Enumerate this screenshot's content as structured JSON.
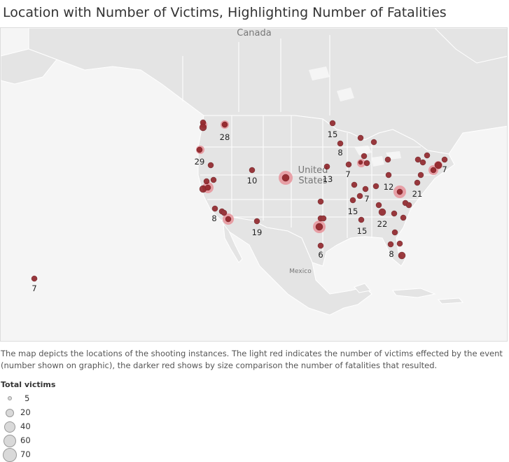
{
  "title": "Location with Number of Victims, Highlighting Number of Fatalities",
  "map": {
    "country_labels": {
      "canada": "Canada",
      "united": "United",
      "states": "States",
      "mexico": "Mexico"
    },
    "colors": {
      "victims_light": "#e8939b",
      "fatalities_dark": "#8b1a1f",
      "land": "#e4e4e4",
      "water": "#f5f5f5",
      "borders": "#ffffff"
    },
    "victim_labels": [
      "28",
      "15",
      "8",
      "29",
      "13",
      "7",
      "10",
      "7",
      "12",
      "7",
      "21",
      "7",
      "15",
      "22",
      "15",
      "8",
      "19",
      "6",
      "8",
      "7"
    ]
  },
  "description": "The map depicts the locations of the shooting instances. The light red indicates the number of victims effected by the event (number shown on graphic), the darker red shows by size comparison the number of fatalities that resulted.",
  "legend": {
    "title": "Total victims",
    "items": [
      "5",
      "20",
      "40",
      "60",
      "70"
    ]
  }
}
